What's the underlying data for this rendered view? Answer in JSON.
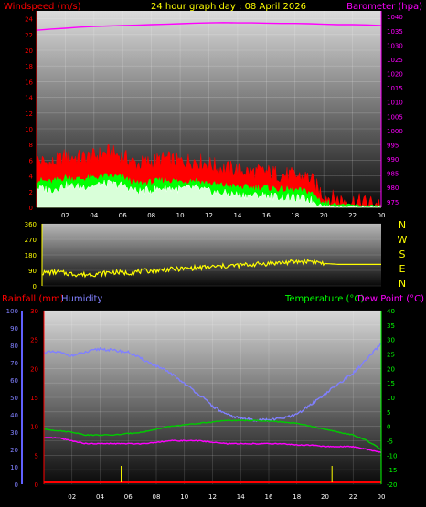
{
  "chart_data": [
    {
      "type": "line",
      "panel": "wind-barometer",
      "title": "24 hour graph day : 08 April 2026",
      "ylabel_left": "Windspeed (m/s)",
      "ylabel_right": "Barometer (hpa)",
      "x_ticks": [
        "02",
        "04",
        "06",
        "08",
        "10",
        "12",
        "14",
        "16",
        "18",
        "20",
        "22",
        "00"
      ],
      "y_left_ticks": [
        0,
        2,
        4,
        6,
        8,
        10,
        12,
        14,
        16,
        18,
        20,
        22,
        24
      ],
      "y_left_range": [
        0,
        25
      ],
      "y_right_ticks": [
        975,
        980,
        985,
        990,
        995,
        1000,
        1005,
        1010,
        1015,
        1020,
        1025,
        1030,
        1035,
        1040
      ],
      "y_right_range": [
        973,
        1042
      ],
      "colors": {
        "gust": "#ff0000",
        "wind_avg": "#00ff00",
        "wind_speed": "#ffffff",
        "barometer": "#ff00ff",
        "left_label": "#ff0000",
        "right_label": "#ff00ff",
        "title": "#ffff00"
      },
      "series": [
        {
          "key": "barometer",
          "axis": "right",
          "x": [
            0,
            1,
            2,
            3,
            4,
            5,
            6,
            7,
            8,
            9,
            10,
            11,
            12,
            13,
            14,
            15,
            16,
            17,
            18,
            19,
            20,
            21,
            22,
            23,
            24
          ],
          "values": [
            1035.2,
            1035.6,
            1035.9,
            1036.3,
            1036.5,
            1036.7,
            1036.9,
            1037.0,
            1037.2,
            1037.3,
            1037.5,
            1037.7,
            1037.8,
            1037.9,
            1037.8,
            1037.8,
            1037.7,
            1037.6,
            1037.6,
            1037.5,
            1037.3,
            1037.2,
            1037.2,
            1037.1,
            1036.9
          ]
        },
        {
          "key": "gust",
          "axis": "left",
          "x": [
            0,
            1,
            2,
            3,
            4,
            5,
            6,
            7,
            8,
            9,
            10,
            11,
            12,
            13,
            14,
            15,
            16,
            17,
            18,
            19,
            20,
            21,
            22,
            23,
            24
          ],
          "values": [
            6.0,
            5.5,
            6.5,
            6.3,
            6.5,
            7.0,
            6.5,
            5.5,
            5.8,
            6.2,
            5.8,
            6.0,
            5.5,
            5.0,
            4.8,
            4.5,
            4.5,
            4.2,
            4.0,
            3.8,
            1.5,
            1.0,
            0.8,
            0.6,
            0.5
          ]
        },
        {
          "key": "wind_avg",
          "axis": "left",
          "x": [
            0,
            1,
            2,
            3,
            4,
            5,
            6,
            7,
            8,
            9,
            10,
            11,
            12,
            13,
            14,
            15,
            16,
            17,
            18,
            19,
            20,
            21,
            22,
            23,
            24
          ],
          "values": [
            3.5,
            3.2,
            3.8,
            3.6,
            3.8,
            4.0,
            3.8,
            3.0,
            3.2,
            3.5,
            3.3,
            3.5,
            3.0,
            2.8,
            2.6,
            2.5,
            2.5,
            2.3,
            2.2,
            2.0,
            0.6,
            0.4,
            0.3,
            0.2,
            0.2
          ]
        },
        {
          "key": "wind_speed",
          "axis": "left",
          "x": [
            0,
            1,
            2,
            3,
            4,
            5,
            6,
            7,
            8,
            9,
            10,
            11,
            12,
            13,
            14,
            15,
            16,
            17,
            18,
            19,
            20,
            21,
            22,
            23,
            24
          ],
          "values": [
            2.5,
            2.2,
            2.8,
            2.6,
            2.8,
            3.0,
            2.8,
            2.0,
            2.2,
            2.5,
            2.3,
            2.5,
            2.0,
            1.8,
            1.6,
            1.5,
            1.5,
            1.3,
            1.2,
            1.0,
            0.2,
            0.1,
            0.1,
            0.0,
            0.0
          ]
        }
      ]
    },
    {
      "type": "line",
      "panel": "wind-direction",
      "y_ticks": [
        0,
        90,
        180,
        270,
        360
      ],
      "y_range": [
        0,
        360
      ],
      "compass": [
        "N",
        "W",
        "S",
        "E",
        "N"
      ],
      "colors": {
        "direction": "#ffff00",
        "compass": "#ffff00"
      },
      "series": [
        {
          "key": "direction",
          "x": [
            0,
            1,
            2,
            3,
            4,
            5,
            6,
            7,
            8,
            9,
            10,
            11,
            12,
            13,
            14,
            15,
            16,
            17,
            18,
            19,
            20,
            21,
            22,
            23,
            24
          ],
          "values": [
            75,
            80,
            70,
            65,
            70,
            80,
            75,
            85,
            90,
            95,
            100,
            105,
            110,
            115,
            120,
            125,
            130,
            135,
            140,
            145,
            130,
            125,
            125,
            125,
            125
          ]
        }
      ]
    },
    {
      "type": "line",
      "panel": "rain-humidity-temperature",
      "legend": {
        "rainfall": "Rainfall (mm)",
        "humidity": "Humidity",
        "temperature": "Temperature (°C)",
        "dewpoint": "Dew Point (°C)"
      },
      "x_ticks": [
        "02",
        "04",
        "06",
        "08",
        "10",
        "12",
        "14",
        "16",
        "18",
        "20",
        "22",
        "00"
      ],
      "humidity_ticks": [
        0,
        10,
        20,
        30,
        40,
        50,
        60,
        70,
        80,
        90,
        100
      ],
      "humidity_range": [
        0,
        100
      ],
      "rain_ticks": [
        0,
        5,
        10,
        15,
        20,
        25,
        30
      ],
      "rain_range": [
        0,
        30
      ],
      "temp_ticks": [
        -20,
        -15,
        -10,
        -5,
        0,
        5,
        10,
        15,
        20,
        25,
        30,
        35,
        40
      ],
      "temp_range": [
        -20,
        40
      ],
      "colors": {
        "humidity": "#8080ff",
        "temperature": "#00cc00",
        "dewpoint": "#ff00ff",
        "rainfall": "#ff0000",
        "rain_marks": "#ffff00",
        "rainfall_label": "#ff0000",
        "humidity_label": "#8080ff",
        "temperature_label": "#00ff00",
        "dewpoint_label": "#ff00ff"
      },
      "series": [
        {
          "key": "humidity",
          "x": [
            0,
            1,
            2,
            3,
            4,
            5,
            6,
            7,
            8,
            9,
            10,
            11,
            12,
            13,
            14,
            15,
            16,
            17,
            18,
            19,
            20,
            21,
            22,
            23,
            24
          ],
          "values": [
            76,
            76,
            74,
            76,
            78,
            77,
            76,
            72,
            68,
            64,
            58,
            52,
            45,
            40,
            38,
            37,
            37,
            38,
            40,
            46,
            52,
            58,
            64,
            72,
            81
          ]
        },
        {
          "key": "temperature",
          "x": [
            0,
            1,
            2,
            3,
            4,
            5,
            6,
            7,
            8,
            9,
            10,
            11,
            12,
            13,
            14,
            15,
            16,
            17,
            18,
            19,
            20,
            21,
            22,
            23,
            24
          ],
          "values": [
            -1,
            -1.5,
            -2,
            -3,
            -3,
            -3,
            -2.5,
            -2,
            -1,
            0,
            0.5,
            1,
            1.5,
            2,
            2,
            2,
            1.8,
            1.5,
            1,
            0,
            -1,
            -2,
            -3,
            -5,
            -8
          ]
        },
        {
          "key": "dewpoint",
          "x": [
            0,
            1,
            2,
            3,
            4,
            5,
            6,
            7,
            8,
            9,
            10,
            11,
            12,
            13,
            14,
            15,
            16,
            17,
            18,
            19,
            20,
            21,
            22,
            23,
            24
          ],
          "values": [
            -4,
            -4,
            -5,
            -6,
            -6,
            -6,
            -6,
            -6,
            -5.5,
            -5,
            -5,
            -5,
            -5.5,
            -6,
            -6,
            -6,
            -6,
            -6,
            -6.5,
            -6.5,
            -7,
            -7,
            -7,
            -8,
            -9
          ]
        },
        {
          "key": "rain_marks",
          "x": [
            5.5,
            20.5
          ],
          "values": [
            1,
            1
          ]
        }
      ]
    }
  ]
}
